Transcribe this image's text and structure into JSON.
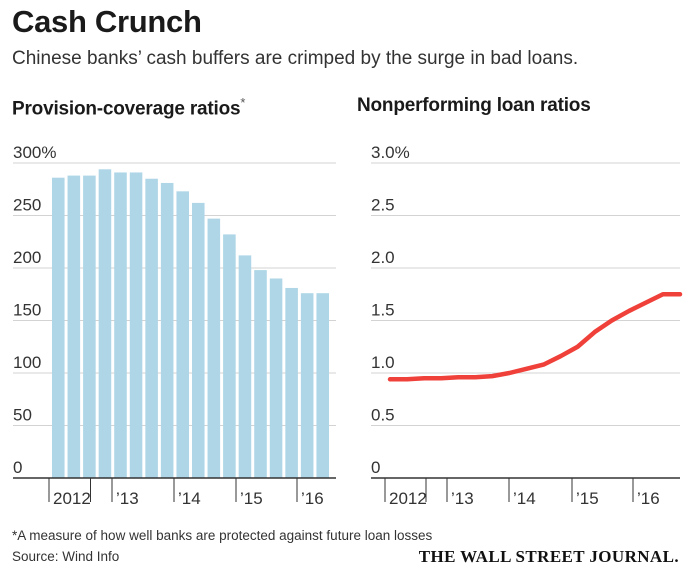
{
  "title": "Cash Crunch",
  "subtitle": "Chinese banks’ cash buffers are crimped by the surge in bad loans.",
  "footnote": "*A measure of how well banks are protected against future loan losses",
  "source": "Source: Wind Info",
  "credit": "THE WALL STREET JOURNAL.",
  "colors": {
    "bar": "#aed6e6",
    "line": "#f0403a",
    "grid": "#d3d3d3",
    "axis": "#333333"
  },
  "chart_data": [
    {
      "type": "bar",
      "title": "Provision-coverage ratios",
      "title_marker": "*",
      "x_ticks": [
        "2012",
        "’13",
        "’14",
        "’15",
        "’16"
      ],
      "y_ticks": [
        "300%",
        "250",
        "200",
        "150",
        "100",
        "50",
        "0"
      ],
      "ylim": [
        0,
        300
      ],
      "grid": true,
      "series": [
        {
          "values": [
            286,
            288,
            288,
            294,
            291,
            291,
            285,
            281,
            273,
            262,
            247,
            232,
            212,
            198,
            190,
            181,
            176,
            176
          ]
        }
      ]
    },
    {
      "type": "line",
      "title": "Nonperforming loan ratios",
      "x_ticks": [
        "2012",
        "’13",
        "’14",
        "’15",
        "’16"
      ],
      "y_ticks": [
        "3.0%",
        "2.5",
        "2.0",
        "1.5",
        "1.0",
        "0.5",
        "0"
      ],
      "ylim": [
        0,
        3.0
      ],
      "grid": true,
      "series": [
        {
          "values": [
            0.94,
            0.94,
            0.95,
            0.95,
            0.96,
            0.96,
            0.97,
            1.0,
            1.04,
            1.08,
            1.16,
            1.25,
            1.39,
            1.5,
            1.59,
            1.67,
            1.75,
            1.75
          ]
        }
      ]
    }
  ]
}
